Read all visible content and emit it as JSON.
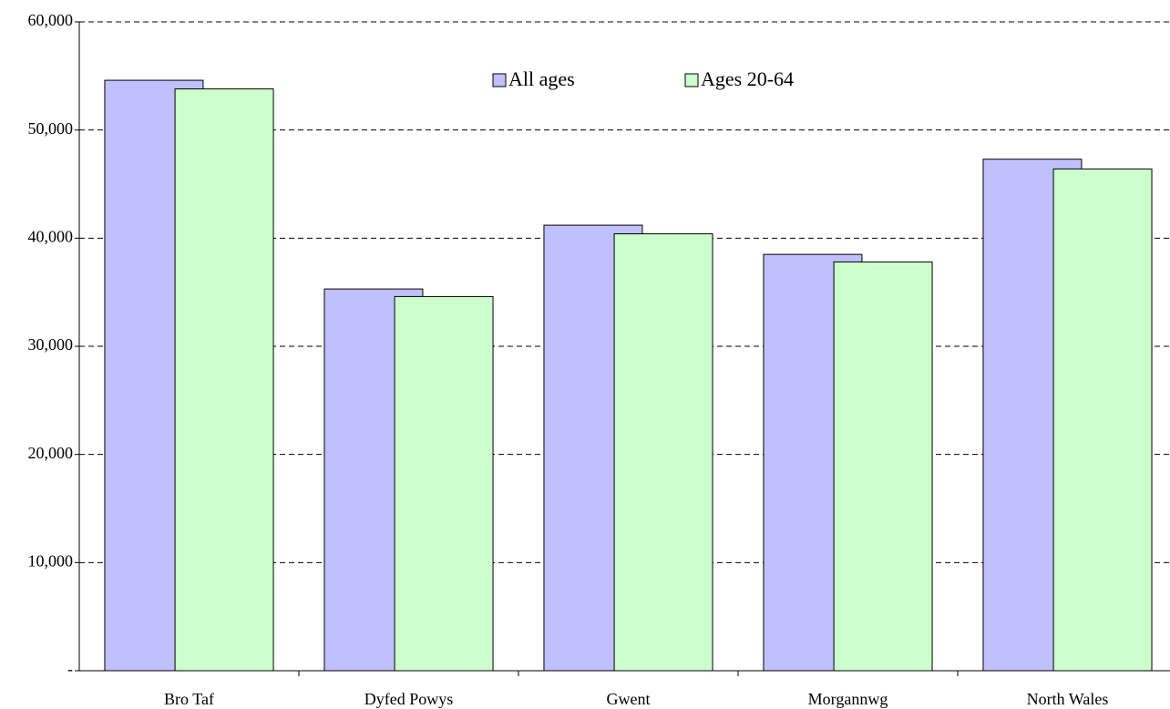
{
  "chart_data": {
    "type": "bar",
    "categories": [
      "Bro Taf",
      "Dyfed Powys",
      "Gwent",
      "Morgannwg",
      "North Wales"
    ],
    "series": [
      {
        "name": "All ages",
        "color": "#c0c0ff",
        "values": [
          54600,
          35300,
          41200,
          38500,
          47300
        ]
      },
      {
        "name": "Ages 20-64",
        "color": "#ccffcc",
        "values": [
          53800,
          34600,
          40400,
          37800,
          46400
        ]
      }
    ],
    "ylim": [
      0,
      60000
    ],
    "yticks": [
      {
        "value": 0,
        "label": "-"
      },
      {
        "value": 10000,
        "label": "10,000"
      },
      {
        "value": 20000,
        "label": "20,000"
      },
      {
        "value": 30000,
        "label": "30,000"
      },
      {
        "value": 40000,
        "label": "40,000"
      },
      {
        "value": 50000,
        "label": "50,000"
      },
      {
        "value": 60000,
        "label": "60,000"
      }
    ],
    "grid": true,
    "legend": "top"
  }
}
